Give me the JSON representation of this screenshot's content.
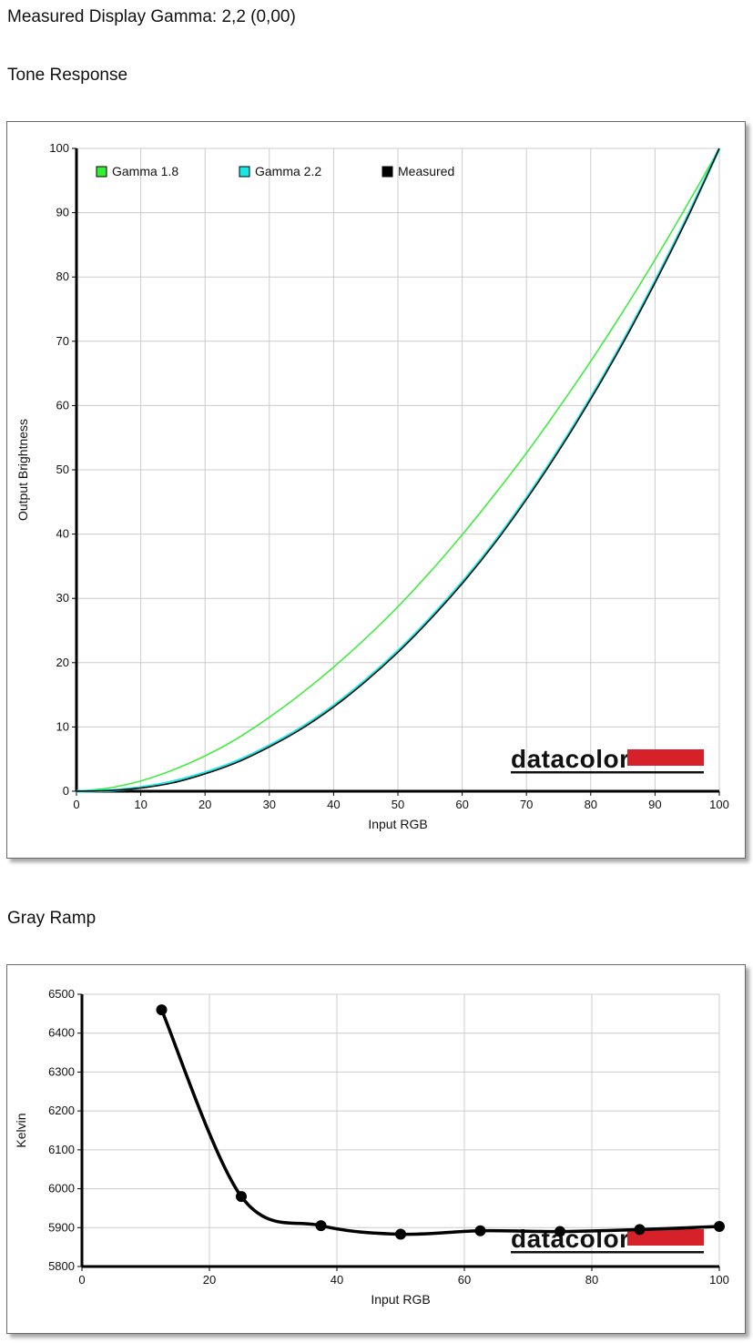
{
  "header": {
    "measured_gamma": "Measured Display Gamma: 2,2 (0,00)",
    "tone_title": "Tone Response",
    "gray_title": "Gray Ramp"
  },
  "logo_text": "datacolor",
  "colors": {
    "gamma18": "#33ee33",
    "gamma22": "#19e6e6",
    "measured": "#000000",
    "logo_red": "#d6202a",
    "grid": "#cccccc"
  },
  "chart_data": [
    {
      "type": "line",
      "xlabel": "Input RGB",
      "ylabel": "Output Brightness",
      "xlim": [
        0,
        100
      ],
      "ylim": [
        0,
        100
      ],
      "xticks": [
        0,
        10,
        20,
        30,
        40,
        50,
        60,
        70,
        80,
        90,
        100
      ],
      "yticks": [
        0,
        10,
        20,
        30,
        40,
        50,
        60,
        70,
        80,
        90,
        100
      ],
      "grid": true,
      "legend_position": "top-left",
      "series": [
        {
          "name": "Gamma 1.8",
          "color": "#33ee33",
          "x": [
            0,
            5,
            10,
            15,
            20,
            25,
            30,
            35,
            40,
            45,
            50,
            55,
            60,
            65,
            70,
            75,
            80,
            85,
            90,
            95,
            100
          ],
          "y": [
            0,
            0.5,
            1.6,
            3.3,
            5.5,
            8.2,
            11.5,
            15.2,
            19.3,
            23.8,
            28.7,
            34.1,
            39.9,
            46.1,
            52.6,
            59.6,
            66.9,
            74.6,
            82.7,
            91.2,
            100
          ]
        },
        {
          "name": "Gamma 2.2",
          "color": "#19e6e6",
          "x": [
            0,
            5,
            10,
            15,
            20,
            25,
            30,
            35,
            40,
            45,
            50,
            55,
            60,
            65,
            70,
            75,
            80,
            85,
            90,
            95,
            100
          ],
          "y": [
            0,
            0.1,
            0.6,
            1.5,
            2.9,
            4.7,
            7.1,
            9.9,
            13.3,
            17.3,
            21.8,
            26.9,
            32.5,
            38.7,
            45.6,
            53.1,
            61.2,
            69.9,
            79.3,
            89.3,
            100
          ]
        },
        {
          "name": "Measured",
          "color": "#000000",
          "x": [
            0,
            5,
            10,
            15,
            20,
            25,
            30,
            35,
            40,
            45,
            50,
            55,
            60,
            65,
            70,
            75,
            80,
            85,
            90,
            95,
            100
          ],
          "y": [
            0,
            0.1,
            0.5,
            1.3,
            2.7,
            4.5,
            6.9,
            9.7,
            13.1,
            17.1,
            21.6,
            26.7,
            32.3,
            38.5,
            45.4,
            52.9,
            61.0,
            69.7,
            79.1,
            89.1,
            100
          ]
        }
      ]
    },
    {
      "type": "line",
      "xlabel": "Input RGB",
      "ylabel": "Kelvin",
      "xlim": [
        0,
        100
      ],
      "ylim": [
        5800,
        6500
      ],
      "xticks": [
        0,
        20,
        40,
        60,
        80,
        100
      ],
      "yticks": [
        5800,
        5900,
        6000,
        6100,
        6200,
        6300,
        6400,
        6500
      ],
      "grid": true,
      "series": [
        {
          "color": "#000000",
          "x": [
            12.5,
            25,
            37.5,
            50,
            62.5,
            75,
            87.5,
            100
          ],
          "y": [
            6460,
            5980,
            5905,
            5883,
            5892,
            5890,
            5895,
            5903
          ]
        }
      ]
    }
  ]
}
